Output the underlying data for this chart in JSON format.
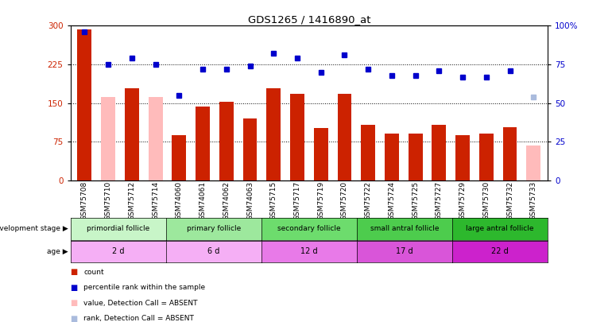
{
  "title": "GDS1265 / 1416890_at",
  "samples": [
    "GSM75708",
    "GSM75710",
    "GSM75712",
    "GSM75714",
    "GSM74060",
    "GSM74061",
    "GSM74062",
    "GSM74063",
    "GSM75715",
    "GSM75717",
    "GSM75719",
    "GSM75720",
    "GSM75722",
    "GSM75724",
    "GSM75725",
    "GSM75727",
    "GSM75729",
    "GSM75730",
    "GSM75732",
    "GSM75733"
  ],
  "count_values": [
    293,
    162,
    178,
    162,
    88,
    143,
    152,
    120,
    178,
    168,
    102,
    168,
    108,
    90,
    90,
    108,
    88,
    90,
    103,
    68
  ],
  "count_absent": [
    false,
    true,
    false,
    true,
    false,
    false,
    false,
    false,
    false,
    false,
    false,
    false,
    false,
    false,
    false,
    false,
    false,
    false,
    false,
    true
  ],
  "rank_values": [
    96,
    75,
    79,
    75,
    55,
    72,
    72,
    74,
    82,
    79,
    70,
    81,
    72,
    68,
    68,
    71,
    67,
    67,
    71,
    54
  ],
  "rank_absent": [
    false,
    false,
    false,
    false,
    false,
    false,
    false,
    false,
    false,
    false,
    false,
    false,
    false,
    false,
    false,
    false,
    false,
    false,
    false,
    true
  ],
  "groups": [
    {
      "label": "primordial follicle",
      "age": "2 d",
      "start": 0,
      "end": 4
    },
    {
      "label": "primary follicle",
      "age": "6 d",
      "start": 4,
      "end": 8
    },
    {
      "label": "secondary follicle",
      "age": "12 d",
      "start": 8,
      "end": 12
    },
    {
      "label": "small antral follicle",
      "age": "17 d",
      "start": 12,
      "end": 16
    },
    {
      "label": "large antral follicle",
      "age": "22 d",
      "start": 16,
      "end": 20
    }
  ],
  "stage_colors": [
    "#c8f5c8",
    "#9de89d",
    "#6ddc6d",
    "#4dcc4d",
    "#2db82d"
  ],
  "age_colors": [
    "#f5aff5",
    "#f5aff5",
    "#e87ae8",
    "#d955d9",
    "#cc22cc"
  ],
  "bar_color": "#cc2200",
  "bar_absent_color": "#ffbbbb",
  "dot_color": "#0000cc",
  "dot_absent_color": "#aabbdd",
  "ylim_left": [
    0,
    300
  ],
  "ylim_right": [
    0,
    100
  ],
  "yticks_left": [
    0,
    75,
    150,
    225,
    300
  ],
  "yticks_right": [
    0,
    25,
    50,
    75,
    100
  ]
}
